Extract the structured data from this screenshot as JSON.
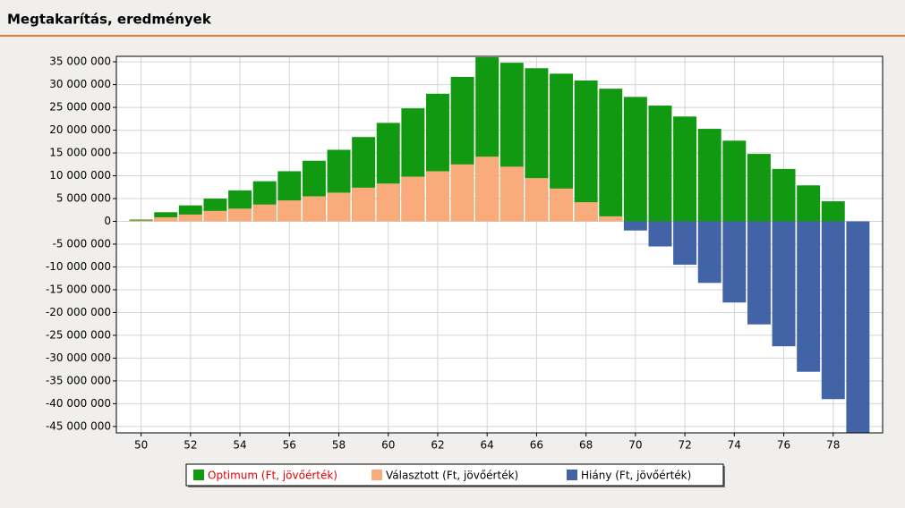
{
  "header": {
    "title": "Megtakarítás, eredmények"
  },
  "chart_data": {
    "type": "bar",
    "x": [
      50,
      51,
      52,
      53,
      54,
      55,
      56,
      57,
      58,
      59,
      60,
      61,
      62,
      63,
      64,
      65,
      66,
      67,
      68,
      69,
      70,
      71,
      72,
      73,
      74,
      75,
      76,
      77,
      78,
      79
    ],
    "series": [
      {
        "name": "Optimum (Ft, jövőérték)",
        "color": "#119a11",
        "values": [
          400000,
          2000000,
          3500000,
          5000000,
          6800000,
          8800000,
          11000000,
          13300000,
          15700000,
          18500000,
          21600000,
          24800000,
          28000000,
          31700000,
          36000000,
          34800000,
          33600000,
          32400000,
          30900000,
          29100000,
          27300000,
          25400000,
          23000000,
          20300000,
          17700000,
          14800000,
          11500000,
          7900000,
          4400000,
          0
        ]
      },
      {
        "name": "Választott (Ft, jövőérték)",
        "color": "#f9ab7c",
        "values": [
          200000,
          900000,
          1500000,
          2300000,
          2800000,
          3700000,
          4600000,
          5500000,
          6300000,
          7400000,
          8300000,
          9800000,
          11000000,
          12500000,
          14200000,
          12000000,
          9500000,
          7200000,
          4200000,
          1100000,
          0,
          0,
          0,
          0,
          0,
          0,
          0,
          0,
          0,
          0
        ]
      },
      {
        "name": "Hiány (Ft, jövőérték)",
        "color": "#4263a6",
        "values": [
          0,
          0,
          0,
          0,
          0,
          0,
          0,
          0,
          0,
          0,
          0,
          0,
          0,
          0,
          0,
          0,
          0,
          0,
          0,
          0,
          -2000000,
          -5500000,
          -9500000,
          -13500000,
          -17800000,
          -22600000,
          -27400000,
          -33000000,
          -39000000,
          -47000000
        ]
      }
    ],
    "xlim": [
      49,
      80
    ],
    "xticks": [
      50,
      52,
      54,
      56,
      58,
      60,
      62,
      64,
      66,
      68,
      70,
      72,
      74,
      76,
      78
    ],
    "ylim": [
      -46400000,
      36200000
    ],
    "yticks": [
      {
        "value": -45000000,
        "label": "-45 000 000"
      },
      {
        "value": -40000000,
        "label": "-40 000 000"
      },
      {
        "value": -35000000,
        "label": "-35 000 000"
      },
      {
        "value": -30000000,
        "label": "-30 000 000"
      },
      {
        "value": -25000000,
        "label": "-25 000 000"
      },
      {
        "value": -20000000,
        "label": "-20 000 000"
      },
      {
        "value": -15000000,
        "label": "-15 000 000"
      },
      {
        "value": -10000000,
        "label": "-10 000 000"
      },
      {
        "value": -5000000,
        "label": "-5 000 000"
      },
      0,
      {
        "value": 5000000,
        "label": "5 000 000"
      },
      {
        "value": 10000000,
        "label": "10 000 000"
      },
      {
        "value": 15000000,
        "label": "15 000 000"
      },
      {
        "value": 20000000,
        "label": "20 000 000"
      },
      {
        "value": 25000000,
        "label": "25 000 000"
      },
      {
        "value": 30000000,
        "label": "30 000 000"
      },
      {
        "value": 35000000,
        "label": "35 000 000"
      }
    ],
    "grid": true
  }
}
